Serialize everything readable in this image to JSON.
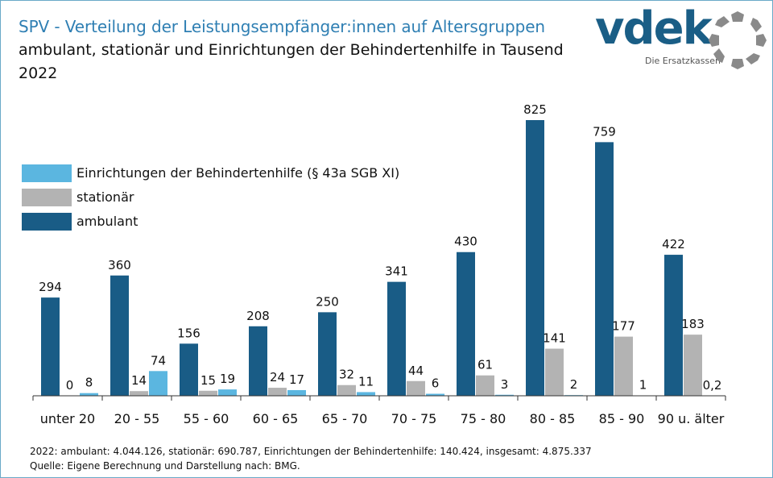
{
  "header": {
    "title": "SPV - Verteilung der Leistungsempfänger:innen auf Altersgruppen",
    "subtitle": "ambulant, stationär und Einrichtungen der Behindertenhilfe in Tausend",
    "year": "2022"
  },
  "logo": {
    "wordmark": "vdek",
    "tagline": "Die Ersatzkassen",
    "brand_color": "#1a5e86",
    "ring_color": "#8a8a8a"
  },
  "chart_data": {
    "type": "bar",
    "title": "SPV - Verteilung der Leistungsempfänger:innen auf Altersgruppen",
    "categories": [
      "unter 20",
      "20 - 55",
      "55 - 60",
      "60 - 65",
      "65 - 70",
      "70 - 75",
      "75 - 80",
      "80 - 85",
      "85 - 90",
      "90 u. älter"
    ],
    "series": [
      {
        "name": "ambulant",
        "color": "#195c86",
        "values": [
          294,
          360,
          156,
          208,
          250,
          341,
          430,
          825,
          759,
          422
        ],
        "labels": [
          "294",
          "360",
          "156",
          "208",
          "250",
          "341",
          "430",
          "825",
          "759",
          "422"
        ]
      },
      {
        "name": "stationär",
        "color": "#b3b3b3",
        "values": [
          0,
          14,
          15,
          24,
          32,
          44,
          61,
          141,
          177,
          183
        ],
        "labels": [
          "0",
          "14",
          "15",
          "24",
          "32",
          "44",
          "61",
          "141",
          "177",
          "183"
        ]
      },
      {
        "name": "Einrichtungen der Behindertenhilfe (§ 43a SGB XI)",
        "color": "#5bb6e0",
        "values": [
          8,
          74,
          19,
          17,
          11,
          6,
          3,
          2,
          1,
          0.2
        ],
        "labels": [
          "8",
          "74",
          "19",
          "17",
          "11",
          "6",
          "3",
          "2",
          "1",
          "0,2"
        ]
      }
    ],
    "ylim": [
      0,
      825
    ],
    "xlabel": "",
    "ylabel": "",
    "grid": false,
    "legend_position": "top-left"
  },
  "legend": [
    {
      "label": "Einrichtungen der Behindertenhilfe (§ 43a SGB XI)",
      "color": "#5bb6e0"
    },
    {
      "label": "stationär",
      "color": "#b3b3b3"
    },
    {
      "label": "ambulant",
      "color": "#195c86"
    }
  ],
  "footnotes": {
    "totals": "2022: ambulant: 4.044.126, stationär: 690.787, Einrichtungen der Behindertenhilfe: 140.424, insgesamt: 4.875.337",
    "source": "Quelle: Eigene Berechnung und Darstellung nach: BMG."
  }
}
